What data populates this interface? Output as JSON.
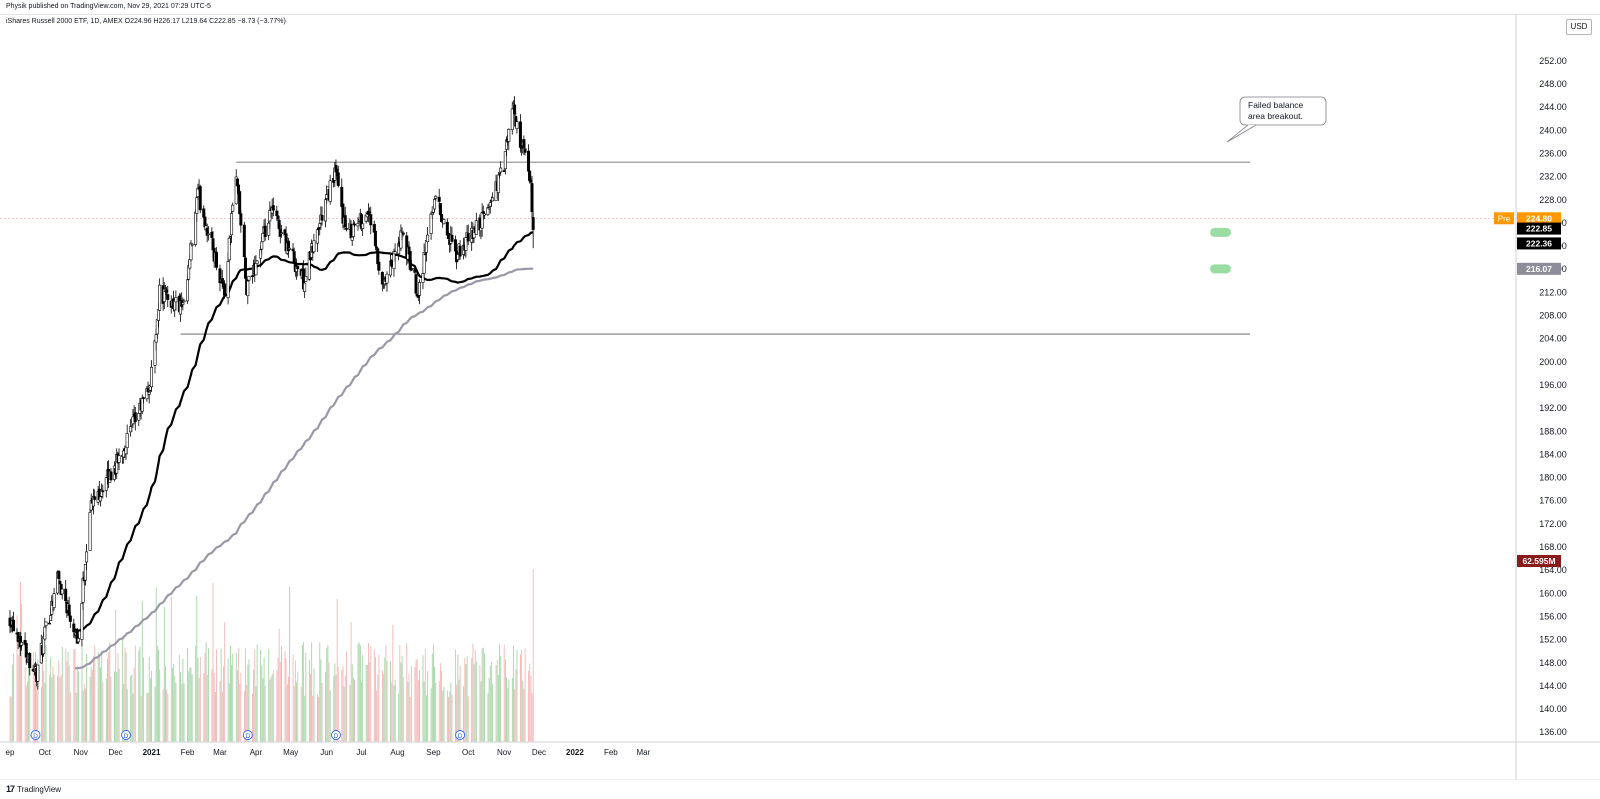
{
  "header": {
    "published": "Physik published on TradingView.com, Nov 29, 2021 07:29 UTC-5",
    "symbol_line": "iShares Russell 2000 ETF, 1D, AMEX  O224.96  H226.17  L219.64  C222.85  −8.73 (−3.77%)"
  },
  "footer": {
    "brand": "TradingView",
    "icon": "tradingview-logo-icon"
  },
  "colors": {
    "candle_body": "#000000",
    "candle_up_fill": "#ffffff",
    "ma_short": "#000000",
    "ma_long": "#9b97a8",
    "volume_up": "#a5d6a7",
    "volume_down": "#f4b8b8",
    "pre_tag": "#ff9800",
    "close_tag": "#000000",
    "ma_long_tag": "#8e8e9a",
    "volume_tag": "#8b1a1a",
    "highlight_ellipse": "#6fcf7b",
    "dividend_marker": "#2962ff"
  },
  "chart_data": {
    "type": "candlestick",
    "title": "iShares Russell 2000 ETF, 1D, AMEX",
    "currency": "USD",
    "ylim": [
      134,
      255
    ],
    "y_ticks": [
      136,
      140,
      144,
      148,
      152,
      156,
      160,
      164,
      168,
      172,
      176,
      180,
      184,
      188,
      192,
      196,
      200,
      204,
      208,
      212,
      216,
      220,
      224,
      228,
      232,
      236,
      240,
      244,
      248,
      252
    ],
    "x_ticks": [
      "ep",
      "Oct",
      "Nov",
      "Dec",
      "2021",
      "Feb",
      "Mar",
      "Apr",
      "May",
      "Jun",
      "Jul",
      "Aug",
      "Sep",
      "Oct",
      "Nov",
      "Dec",
      "2022",
      "Feb",
      "Mar"
    ],
    "price_path_anchors": [
      {
        "date": "2020-09-01",
        "close": 156
      },
      {
        "date": "2020-09-24",
        "close": 146
      },
      {
        "date": "2020-10-12",
        "close": 163
      },
      {
        "date": "2020-10-30",
        "close": 152
      },
      {
        "date": "2020-11-09",
        "close": 175
      },
      {
        "date": "2020-12-01",
        "close": 182
      },
      {
        "date": "2020-12-31",
        "close": 196
      },
      {
        "date": "2021-01-08",
        "close": 212
      },
      {
        "date": "2021-01-29",
        "close": 209
      },
      {
        "date": "2021-02-10",
        "close": 229
      },
      {
        "date": "2021-03-05",
        "close": 212
      },
      {
        "date": "2021-03-15",
        "close": 233
      },
      {
        "date": "2021-03-24",
        "close": 212
      },
      {
        "date": "2021-04-15",
        "close": 226
      },
      {
        "date": "2021-05-12",
        "close": 214
      },
      {
        "date": "2021-06-08",
        "close": 233
      },
      {
        "date": "2021-06-18",
        "close": 222
      },
      {
        "date": "2021-07-08",
        "close": 226
      },
      {
        "date": "2021-07-19",
        "close": 212
      },
      {
        "date": "2021-08-05",
        "close": 222
      },
      {
        "date": "2021-08-19",
        "close": 212
      },
      {
        "date": "2021-09-02",
        "close": 229
      },
      {
        "date": "2021-09-20",
        "close": 218
      },
      {
        "date": "2021-10-15",
        "close": 225
      },
      {
        "date": "2021-11-01",
        "close": 234
      },
      {
        "date": "2021-11-08",
        "close": 244
      },
      {
        "date": "2021-11-18",
        "close": 236
      },
      {
        "date": "2021-11-24",
        "close": 230
      },
      {
        "date": "2021-11-26",
        "close": 222.85
      }
    ],
    "moving_averages": [
      {
        "color": "#000000",
        "last_value": 222.36
      },
      {
        "color": "#9b97a8",
        "last_value": 216.07
      }
    ],
    "balance_area": {
      "top": 234.5,
      "bottom": 204.8,
      "start": "2021-01-26",
      "end": "2021-12-31"
    },
    "price_tags": [
      {
        "label": "Pre",
        "value": "224.80"
      },
      {
        "label": "",
        "value": "222.85"
      },
      {
        "label": "",
        "value": "222.36"
      },
      {
        "label": "",
        "value": "216.07"
      }
    ],
    "volume_last": "62.595M",
    "annotation": "Failed balance area breakout.",
    "dividend_marker_label": "D",
    "dividend_dates": [
      "2020-09-23",
      "2020-12-10",
      "2021-03-25",
      "2021-06-09",
      "2021-09-24"
    ],
    "grid": false
  }
}
